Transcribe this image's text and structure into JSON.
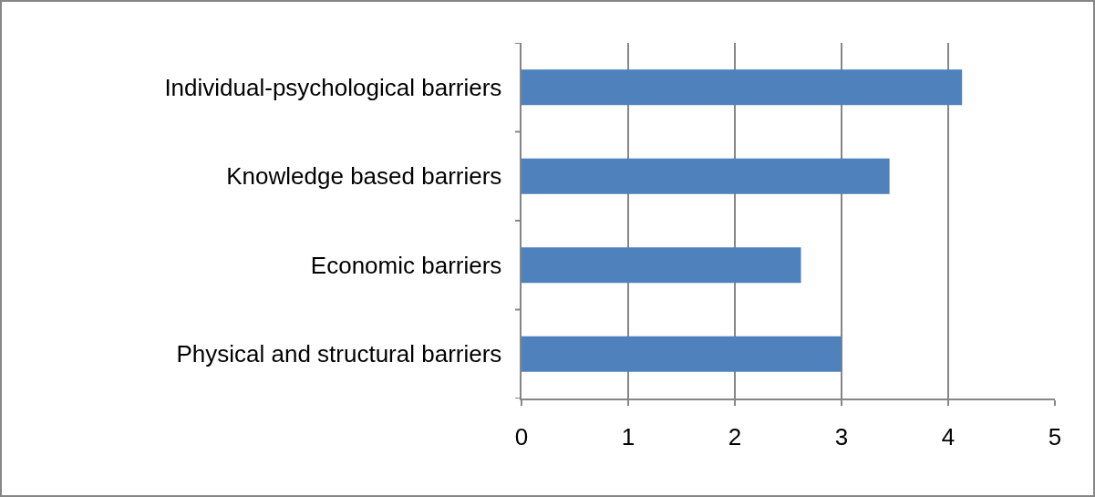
{
  "chart_data": {
    "type": "bar",
    "orientation": "horizontal",
    "categories": [
      "Individual-psychological barriers",
      "Knowledge based barriers",
      "Economic barriers",
      "Physical and structural barriers"
    ],
    "values": [
      4.13,
      3.45,
      2.62,
      3.0
    ],
    "color": "#4f81bd",
    "xlim": [
      0,
      5
    ],
    "xticks": [
      0,
      1,
      2,
      3,
      4,
      5
    ],
    "grid": "x"
  }
}
